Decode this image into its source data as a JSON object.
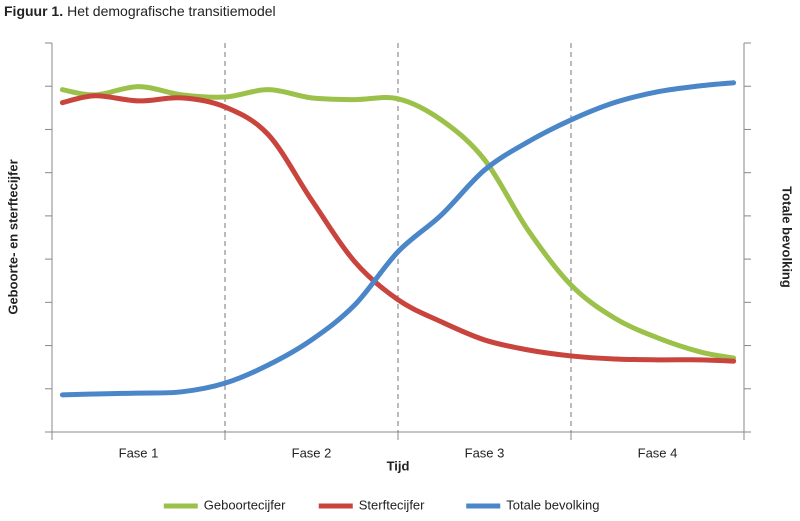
{
  "chart_data": {
    "type": "line",
    "title_label": "Figuur 1.",
    "title": "Het demografische transitiemodel",
    "y_label": "Geboorte- en sterftecijfer",
    "y2_label": "Totale bevolking",
    "x_label": "Tijd",
    "phases": [
      "Fase 1",
      "Fase 2",
      "Fase 3",
      "Fase 4"
    ],
    "xlim": [
      0,
      4
    ],
    "xticks": [
      0,
      1,
      2,
      3,
      4
    ],
    "ylim": [
      0,
      9
    ],
    "yticks": [
      0,
      1,
      2,
      3,
      4,
      5,
      6,
      7,
      8,
      9
    ],
    "x": [
      0.06,
      0.25,
      0.5,
      0.75,
      1.0,
      1.25,
      1.5,
      1.75,
      2.0,
      2.25,
      2.5,
      2.75,
      3.0,
      3.25,
      3.5,
      3.75,
      3.94
    ],
    "series": [
      {
        "name": "Geboortecijfer",
        "color": "#9bc14a",
        "values": [
          7.92,
          7.8,
          7.99,
          7.8,
          7.75,
          7.92,
          7.73,
          7.69,
          7.71,
          7.22,
          6.3,
          4.68,
          3.4,
          2.64,
          2.18,
          1.85,
          1.71
        ]
      },
      {
        "name": "Sterftecijfer",
        "color": "#c8443d",
        "values": [
          7.62,
          7.78,
          7.66,
          7.73,
          7.52,
          6.88,
          5.37,
          3.94,
          3.06,
          2.55,
          2.13,
          1.9,
          1.76,
          1.69,
          1.67,
          1.67,
          1.64
        ]
      },
      {
        "name": "Totale bevolking",
        "color": "#4a86c8",
        "values": [
          0.86,
          0.88,
          0.9,
          0.93,
          1.13,
          1.55,
          2.13,
          2.94,
          4.17,
          5.02,
          6.06,
          6.71,
          7.22,
          7.62,
          7.87,
          8.01,
          8.08
        ]
      }
    ]
  }
}
